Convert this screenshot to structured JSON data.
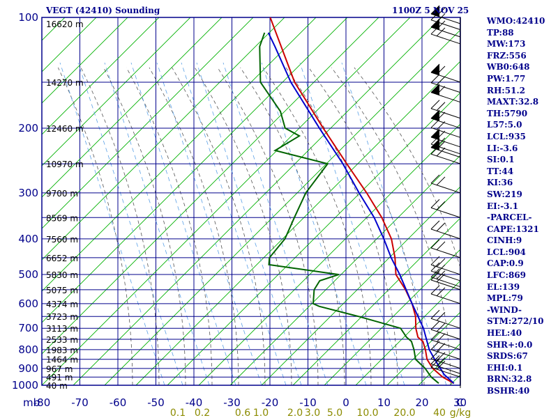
{
  "header": {
    "title": "VEGT (42410) Sounding",
    "datetime": "1100Z  5 NOV 25"
  },
  "indices": [
    "WMO:42410",
    "TP:88",
    "MW:173",
    "FRZ:556",
    "WB0:648",
    "PW:1.77",
    "RH:51.2",
    "MAXT:32.8",
    "TH:5790",
    "L57:5.0",
    "LCL:935",
    "LI:-3.6",
    "SI:0.1",
    "TT:44",
    "KI:36",
    "SW:219",
    "EI:-3.1",
    "-PARCEL-",
    "CAPE:1321",
    "CINH:9",
    "LCL:904",
    "CAP:0.9",
    "LFC:869",
    "EL:139",
    "MPL:79",
    "-WIND-",
    "STM:272/10",
    "HEL:40",
    "SHR+:0.0",
    "SRDS:67",
    "EHI:0.1",
    "BRN:32.8",
    "BSHR:40"
  ],
  "colors": {
    "frame": "#00008b",
    "temperature": "#cc0000",
    "dewpoint": "#006400",
    "parcel": "#0000cd",
    "dry_adiabat": "#00b000",
    "moist_adiabat": "#555555",
    "mixing_ratio": "#5aa0e6",
    "mixing_ratio_labels": "#8b8b00"
  },
  "chart_data": {
    "type": "skew-t",
    "title": "VEGT (42410) Sounding",
    "pressure_axis": {
      "unit_label": "mb",
      "log_scale": true,
      "range_hpa": [
        1000,
        100
      ],
      "ticks": [
        100,
        200,
        300,
        400,
        500,
        600,
        700,
        800,
        900,
        1000
      ]
    },
    "temperature_axis": {
      "range_c": [
        -80,
        30
      ],
      "ticks": [
        "-80",
        "-70",
        "-60",
        "-50",
        "-40",
        "-30",
        "-20",
        "-10",
        "0",
        "10",
        "20",
        "30"
      ],
      "extra_label": "C"
    },
    "height_labels": [
      {
        "p": 104,
        "label": "16620 m"
      },
      {
        "p": 150,
        "label": "14270 m"
      },
      {
        "p": 200,
        "label": "12460 m"
      },
      {
        "p": 250,
        "label": "10970 m"
      },
      {
        "p": 300,
        "label": "9700 m"
      },
      {
        "p": 350,
        "label": "8569 m"
      },
      {
        "p": 400,
        "label": "7560 m"
      },
      {
        "p": 450,
        "label": "6652 m"
      },
      {
        "p": 500,
        "label": "5830 m"
      },
      {
        "p": 550,
        "label": "5075 m"
      },
      {
        "p": 600,
        "label": "4374 m"
      },
      {
        "p": 650,
        "label": "3723 m"
      },
      {
        "p": 700,
        "label": "3113 m"
      },
      {
        "p": 750,
        "label": "2533 m"
      },
      {
        "p": 800,
        "label": "1983 m"
      },
      {
        "p": 850,
        "label": "1464 m"
      },
      {
        "p": 900,
        "label": "967 m"
      },
      {
        "p": 950,
        "label": "491 m"
      },
      {
        "p": 1000,
        "label": "40 m"
      }
    ],
    "mixing_ratio_labels": [
      "0.1",
      "0.2",
      "0.6",
      "1.0",
      "2.0",
      "3.0",
      "5.0",
      "10.0",
      "20.0",
      "40",
      "g/kg"
    ],
    "series": [
      {
        "key": "temperature",
        "points": [
          [
            988,
            28
          ],
          [
            950,
            24
          ],
          [
            900,
            20
          ],
          [
            850,
            17
          ],
          [
            800,
            15
          ],
          [
            760,
            13
          ],
          [
            740,
            11
          ],
          [
            700,
            9
          ],
          [
            650,
            7
          ],
          [
            600,
            4
          ],
          [
            550,
            0
          ],
          [
            500,
            -5
          ],
          [
            450,
            -8
          ],
          [
            400,
            -12
          ],
          [
            350,
            -18
          ],
          [
            300,
            -26
          ],
          [
            250,
            -36
          ],
          [
            200,
            -48
          ],
          [
            150,
            -63
          ],
          [
            100,
            -80
          ]
        ]
      },
      {
        "key": "dewpoint",
        "points": [
          [
            988,
            24
          ],
          [
            950,
            21
          ],
          [
            900,
            18
          ],
          [
            850,
            14
          ],
          [
            800,
            12
          ],
          [
            760,
            10
          ],
          [
            740,
            8
          ],
          [
            700,
            5
          ],
          [
            650,
            -8
          ],
          [
            610,
            -20
          ],
          [
            600,
            -22
          ],
          [
            550,
            -24
          ],
          [
            520,
            -24
          ],
          [
            500,
            -20
          ],
          [
            470,
            -40
          ],
          [
            450,
            -41
          ],
          [
            400,
            -40
          ],
          [
            350,
            -41
          ],
          [
            300,
            -42
          ],
          [
            250,
            -41
          ],
          [
            230,
            -57
          ],
          [
            210,
            -53
          ],
          [
            200,
            -58
          ],
          [
            180,
            -62
          ],
          [
            150,
            -72
          ],
          [
            120,
            -78
          ],
          [
            110,
            -79
          ]
        ]
      },
      {
        "key": "parcel",
        "points": [
          [
            988,
            28
          ],
          [
            935,
            24
          ],
          [
            900,
            22
          ],
          [
            850,
            19
          ],
          [
            800,
            16
          ],
          [
            700,
            11
          ],
          [
            600,
            4
          ],
          [
            500,
            -4
          ],
          [
            450,
            -9
          ],
          [
            400,
            -14
          ],
          [
            350,
            -20
          ],
          [
            300,
            -28
          ],
          [
            250,
            -37
          ],
          [
            200,
            -49
          ],
          [
            150,
            -64
          ],
          [
            120,
            -74
          ],
          [
            110,
            -78
          ]
        ]
      }
    ],
    "wind_barbs_hpa": [
      104,
      108,
      113,
      118,
      150,
      160,
      170,
      188,
      200,
      212,
      225,
      235,
      240,
      250,
      300,
      350,
      400,
      450,
      500,
      520,
      540,
      550,
      600,
      700,
      750,
      800,
      850,
      900,
      930,
      950
    ]
  }
}
